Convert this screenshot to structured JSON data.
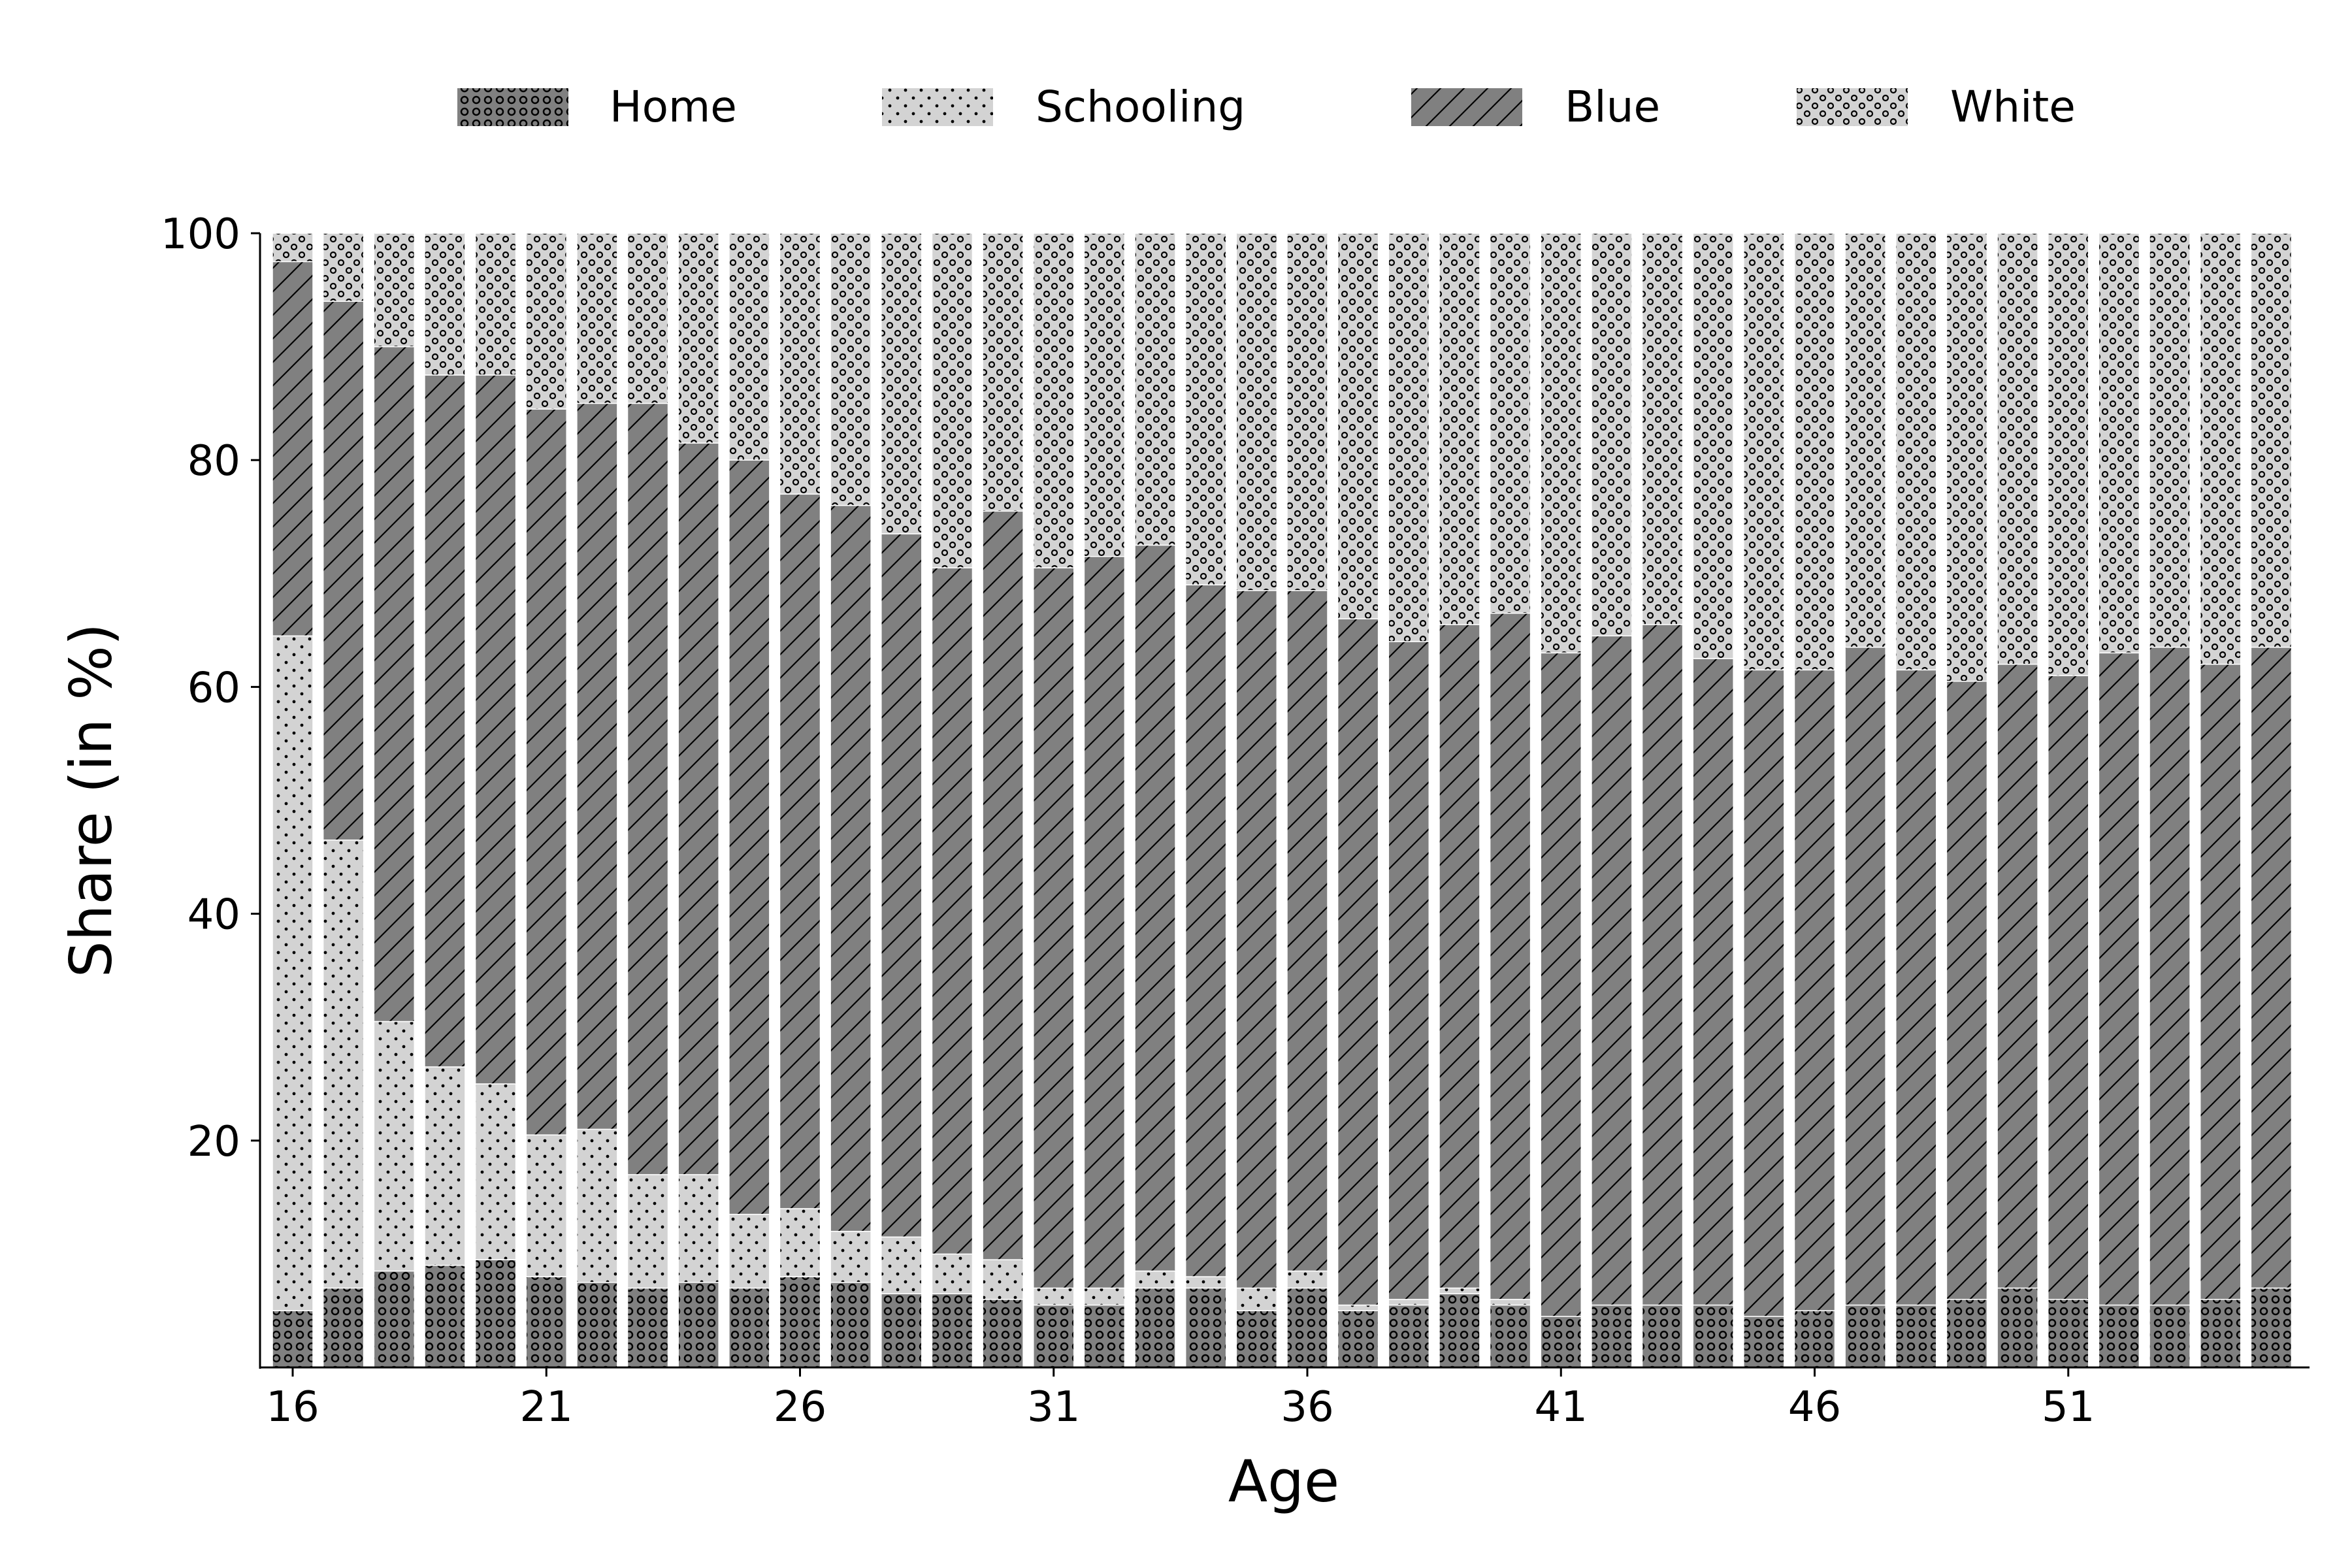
{
  "chart_data": {
    "type": "bar",
    "stacked": true,
    "title": "",
    "xlabel": "Age",
    "ylabel": "Share (in %)",
    "ylim": [
      0,
      100
    ],
    "yticks": [
      20,
      40,
      60,
      80,
      100
    ],
    "xticks": [
      16,
      21,
      26,
      31,
      36,
      41,
      46,
      51
    ],
    "legend_position": "top-center",
    "categories": [
      16,
      17,
      18,
      19,
      20,
      21,
      22,
      23,
      24,
      25,
      26,
      27,
      28,
      29,
      30,
      31,
      32,
      33,
      34,
      35,
      36,
      37,
      38,
      39,
      40,
      41,
      42,
      43,
      44,
      45,
      46,
      47,
      48,
      49,
      50,
      51,
      52,
      53,
      54,
      55
    ],
    "series": [
      {
        "name": "Home",
        "values": [
          5,
          7,
          8.5,
          9,
          9.5,
          8,
          7.5,
          7,
          7.5,
          7,
          8,
          7.5,
          6.5,
          6.5,
          6,
          5.5,
          5.5,
          7,
          7,
          5,
          7,
          5,
          5.5,
          6.5,
          5.5,
          4.5,
          5.5,
          5.5,
          5.5,
          4.5,
          5,
          5.5,
          5.5,
          6,
          7,
          6,
          5.5,
          5.5,
          6,
          7
        ]
      },
      {
        "name": "Schooling",
        "values": [
          59.5,
          39.5,
          22,
          17.5,
          15.5,
          12.5,
          13.5,
          10,
          9.5,
          6.5,
          6,
          4.5,
          5,
          3.5,
          3.5,
          1.5,
          1.5,
          1.5,
          1,
          2,
          1.5,
          0.5,
          0.5,
          0.5,
          0.5,
          0,
          0,
          0,
          0,
          0,
          0,
          0,
          0,
          0,
          0,
          0,
          0,
          0,
          0,
          0
        ]
      },
      {
        "name": "Blue",
        "values": [
          33,
          47.5,
          59.5,
          61,
          62.5,
          64,
          64,
          68,
          64.5,
          66.5,
          63,
          64,
          62,
          60.5,
          66,
          63.5,
          64.5,
          64,
          61,
          61.5,
          60,
          60.5,
          58,
          58.5,
          60.5,
          58.5,
          59,
          60,
          57,
          57,
          56.5,
          58,
          56,
          54.5,
          55,
          55,
          57.5,
          58,
          56,
          56.5
        ]
      },
      {
        "name": "White",
        "values": [
          2.5,
          6,
          10,
          12.5,
          12.5,
          15.5,
          15,
          15,
          18.5,
          20,
          23,
          24,
          26.5,
          29.5,
          24.5,
          29.5,
          28.5,
          27.5,
          31,
          31.5,
          31.5,
          34,
          36,
          34.5,
          33.5,
          37,
          35.5,
          34.5,
          37.5,
          38.5,
          38.5,
          36.5,
          38.5,
          39.5,
          38,
          39,
          37,
          36.5,
          38,
          36.5
        ]
      }
    ]
  }
}
